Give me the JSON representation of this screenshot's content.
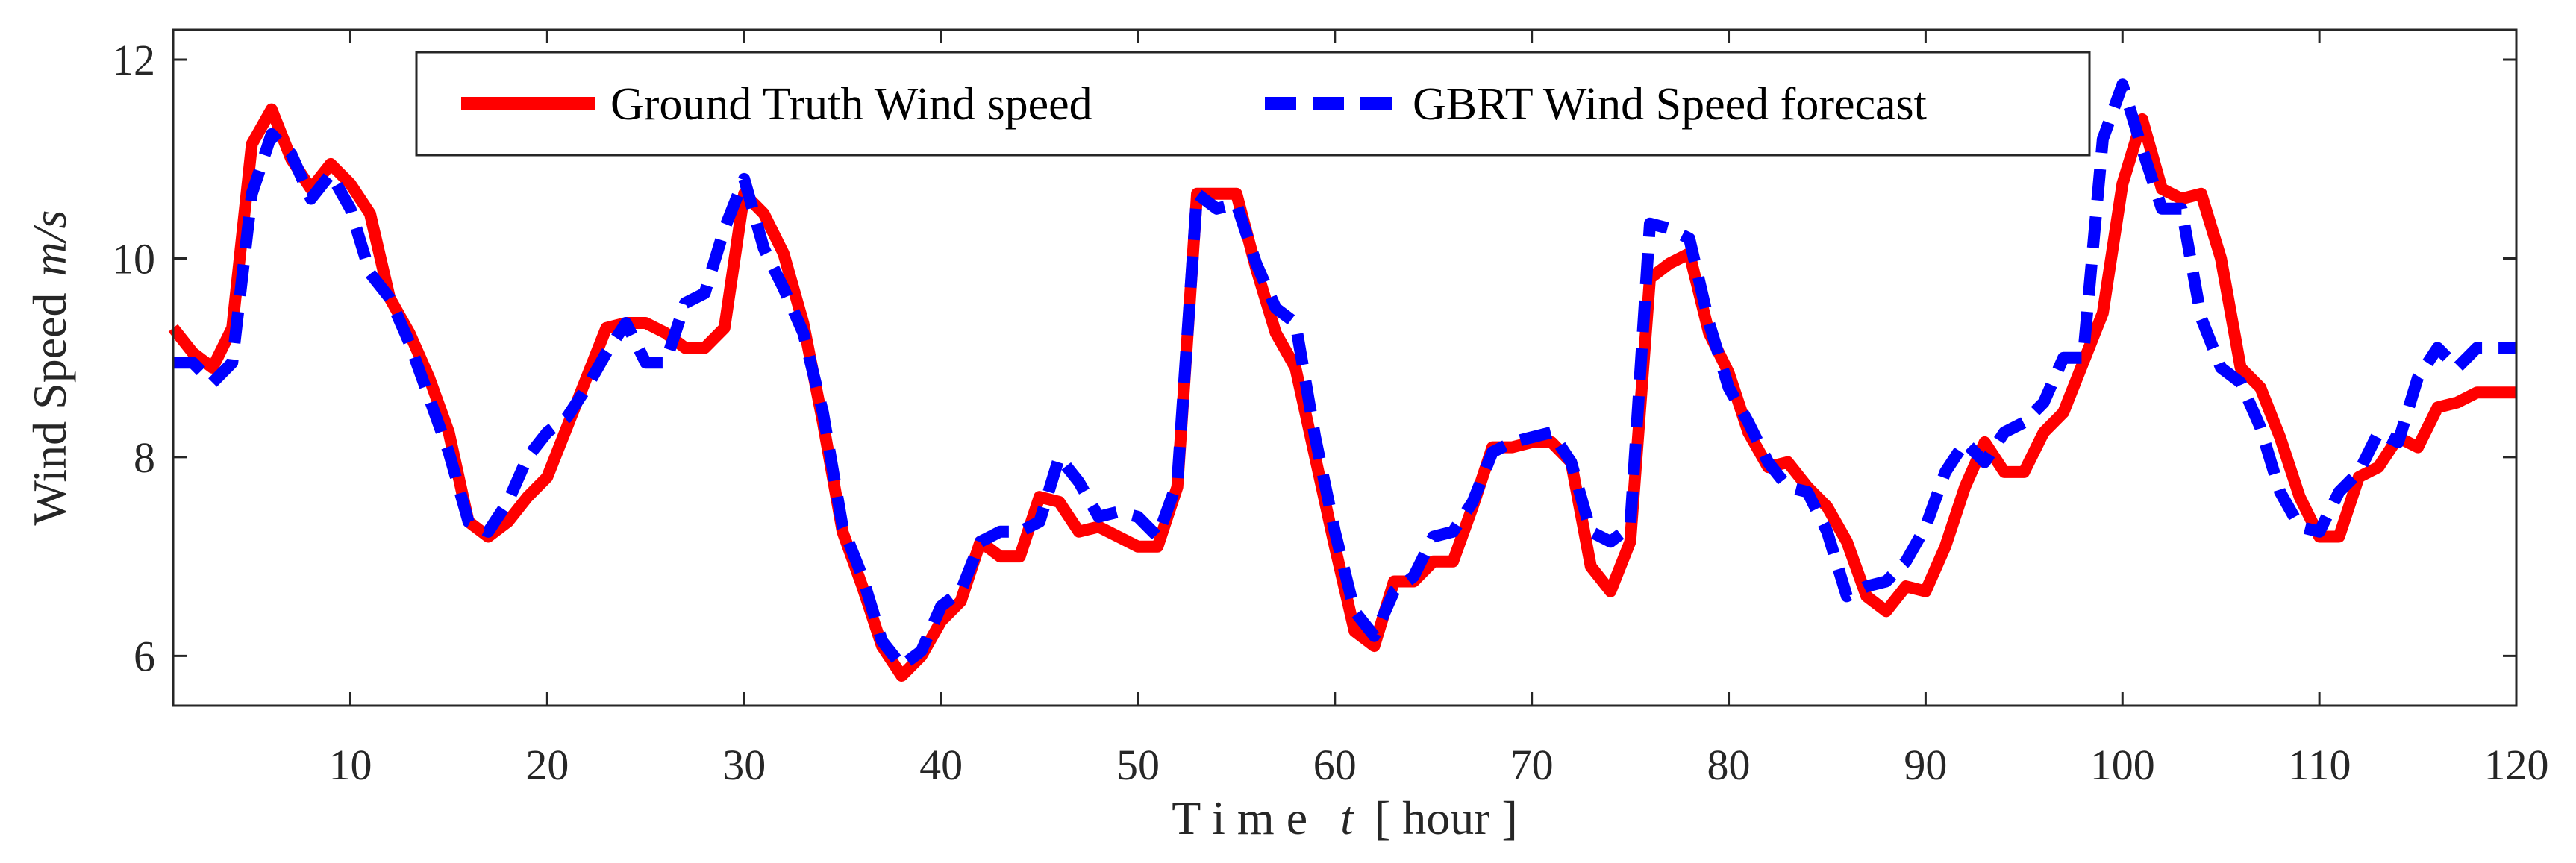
{
  "chart_data": {
    "type": "line",
    "title": "",
    "xlabel": "T i m e",
    "xlabel_var": "t",
    "xlabel_unit": "[ hour ]",
    "ylabel": "Wind Speed",
    "ylabel_unit": "m/s",
    "xlim": [
      1,
      120
    ],
    "ylim": [
      5.5,
      12.3
    ],
    "xticks": [
      10,
      20,
      30,
      40,
      50,
      60,
      70,
      80,
      90,
      100,
      110,
      120
    ],
    "yticks": [
      6,
      8,
      10,
      12
    ],
    "x": [
      1,
      2,
      3,
      4,
      5,
      6,
      7,
      8,
      9,
      10,
      11,
      12,
      13,
      14,
      15,
      16,
      17,
      18,
      19,
      20,
      21,
      22,
      23,
      24,
      25,
      26,
      27,
      28,
      29,
      30,
      31,
      32,
      33,
      34,
      35,
      36,
      37,
      38,
      39,
      40,
      41,
      42,
      43,
      44,
      45,
      46,
      47,
      48,
      49,
      50,
      51,
      52,
      53,
      54,
      55,
      56,
      57,
      58,
      59,
      60,
      61,
      62,
      63,
      64,
      65,
      66,
      67,
      68,
      69,
      70,
      71,
      72,
      73,
      74,
      75,
      76,
      77,
      78,
      79,
      80,
      81,
      82,
      83,
      84,
      85,
      86,
      87,
      88,
      89,
      90,
      91,
      92,
      93,
      94,
      95,
      96,
      97,
      98,
      99,
      100,
      101,
      102,
      103,
      104,
      105,
      106,
      107,
      108,
      109,
      110,
      111,
      112,
      113,
      114,
      115,
      116,
      117,
      118,
      119,
      120
    ],
    "series": [
      {
        "name": "Ground Truth Wind speed",
        "color": "#ff0000",
        "style": "solid",
        "values": [
          9.3,
          9.05,
          8.9,
          9.3,
          11.15,
          11.5,
          11.0,
          10.7,
          10.95,
          10.75,
          10.45,
          9.6,
          9.25,
          8.8,
          8.25,
          7.35,
          7.2,
          7.35,
          7.6,
          7.8,
          8.3,
          8.8,
          9.3,
          9.35,
          9.35,
          9.25,
          9.1,
          9.1,
          9.3,
          10.65,
          10.45,
          10.05,
          9.35,
          8.35,
          7.25,
          6.7,
          6.1,
          5.8,
          6.0,
          6.35,
          6.55,
          7.15,
          7.0,
          7.0,
          7.6,
          7.55,
          7.25,
          7.3,
          7.2,
          7.1,
          7.1,
          7.7,
          10.65,
          10.65,
          10.65,
          9.9,
          9.25,
          8.9,
          8.0,
          7.1,
          6.25,
          6.1,
          6.75,
          6.75,
          6.95,
          6.95,
          7.5,
          8.1,
          8.1,
          8.15,
          8.15,
          7.95,
          6.9,
          6.65,
          7.15,
          9.8,
          9.95,
          10.05,
          9.25,
          8.85,
          8.25,
          7.9,
          7.95,
          7.7,
          7.5,
          7.15,
          6.6,
          6.45,
          6.7,
          6.65,
          7.1,
          7.7,
          8.15,
          7.85,
          7.85,
          8.25,
          8.45,
          8.95,
          9.45,
          10.75,
          11.4,
          10.7,
          10.6,
          10.65,
          10.0,
          8.9,
          8.7,
          8.2,
          7.6,
          7.2,
          7.2,
          7.8,
          7.9,
          8.2,
          8.1,
          8.5,
          8.55,
          8.65,
          8.65,
          8.65
        ]
      },
      {
        "name": "GBRT Wind Speed forecast",
        "color": "#0000ff",
        "style": "dashed",
        "values": [
          8.95,
          8.95,
          8.75,
          8.95,
          10.65,
          11.25,
          11.05,
          10.6,
          10.85,
          10.5,
          9.85,
          9.6,
          9.15,
          8.6,
          8.05,
          7.35,
          7.25,
          7.55,
          8.0,
          8.25,
          8.4,
          8.7,
          9.05,
          9.35,
          8.95,
          8.95,
          9.55,
          9.65,
          10.3,
          10.8,
          10.1,
          9.7,
          9.25,
          8.45,
          7.3,
          6.8,
          6.15,
          5.9,
          6.05,
          6.5,
          6.65,
          7.15,
          7.25,
          7.25,
          7.35,
          8.0,
          7.75,
          7.4,
          7.45,
          7.4,
          7.2,
          7.75,
          10.65,
          10.5,
          10.55,
          9.95,
          9.5,
          9.35,
          8.2,
          7.25,
          6.45,
          6.2,
          6.65,
          6.8,
          7.2,
          7.25,
          7.55,
          8.05,
          8.15,
          8.2,
          8.25,
          7.95,
          7.25,
          7.15,
          7.3,
          10.35,
          10.3,
          10.2,
          9.35,
          8.7,
          8.35,
          7.95,
          7.7,
          7.65,
          7.25,
          6.6,
          6.7,
          6.75,
          6.95,
          7.3,
          7.85,
          8.15,
          7.95,
          8.25,
          8.35,
          8.55,
          9.0,
          9.0,
          11.2,
          11.75,
          11.1,
          10.5,
          10.5,
          9.4,
          8.9,
          8.75,
          8.3,
          7.65,
          7.3,
          7.25,
          7.65,
          7.85,
          8.25,
          8.15,
          8.8,
          9.1,
          8.9,
          9.1,
          9.1,
          9.1
        ]
      }
    ],
    "legend_position": "top-center",
    "grid": false
  }
}
